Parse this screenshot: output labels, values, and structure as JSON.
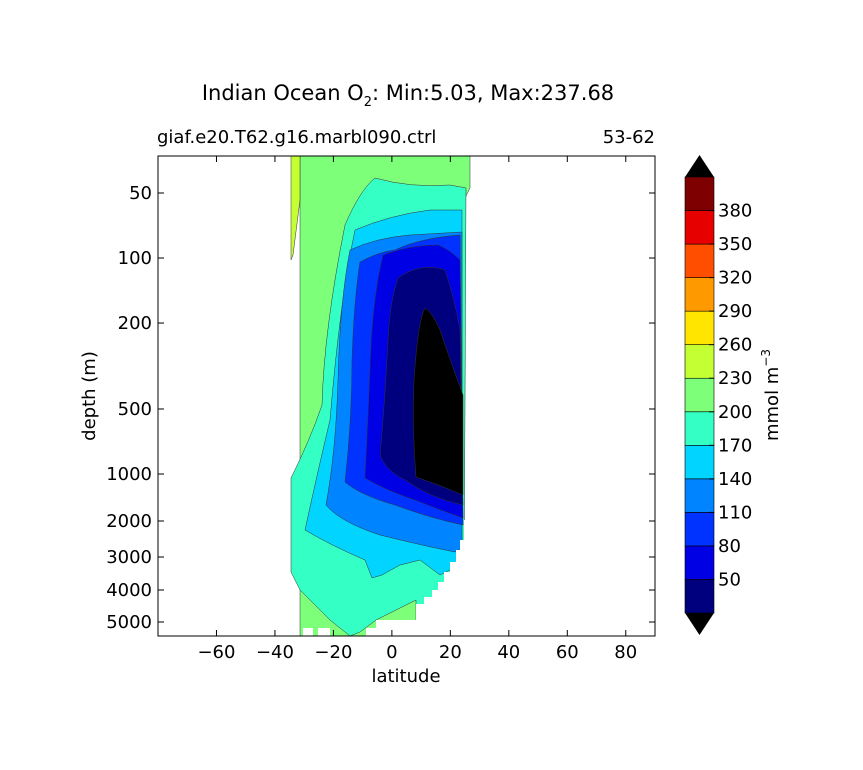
{
  "figure": {
    "title_main": "Indian Ocean O",
    "title_sub": "2",
    "title_rest": ": Min:5.03, Max:237.68",
    "left_label": "giaf.e20.T62.g16.marbl090.ctrl",
    "right_label": "53-62"
  },
  "chart_data": {
    "type": "heatmap",
    "title": "Indian Ocean O2: Min:5.03, Max:237.68",
    "xlabel": "latitude",
    "ylabel": "depth (m)",
    "xlim": [
      -80,
      90
    ],
    "ylim": [
      5500,
      20
    ],
    "yscale": "log (depth-stretched)",
    "x_ticks": [
      -60,
      -40,
      -20,
      0,
      20,
      40,
      60,
      80
    ],
    "x_tick_labels": [
      "−60",
      "−40",
      "−20",
      "0",
      "20",
      "40",
      "60",
      "80"
    ],
    "y_ticks": [
      50,
      100,
      200,
      500,
      1000,
      2000,
      3000,
      4000,
      5000
    ],
    "y_tick_labels": [
      "50",
      "100",
      "200",
      "500",
      "1000",
      "2000",
      "3000",
      "4000",
      "5000"
    ],
    "data_extent_latitude": [
      -34,
      26
    ],
    "colorbar": {
      "label": "mmol m",
      "label_exponent": "−3",
      "levels": [
        20,
        50,
        80,
        110,
        140,
        170,
        200,
        230,
        260,
        290,
        320,
        350,
        380,
        410
      ],
      "tick_labels": [
        "50",
        "80",
        "110",
        "140",
        "170",
        "200",
        "230",
        "260",
        "290",
        "320",
        "350",
        "380"
      ],
      "colors": [
        "#00007f",
        "#0000e5",
        "#0033ff",
        "#0084ff",
        "#00d4ff",
        "#34ffc4",
        "#7dff7a",
        "#c4ff33",
        "#ffe500",
        "#ff9900",
        "#ff4e00",
        "#e60000",
        "#7f0000"
      ],
      "extend": "both",
      "under_color": "#000000",
      "over_color": "#000000"
    },
    "grid": false
  }
}
